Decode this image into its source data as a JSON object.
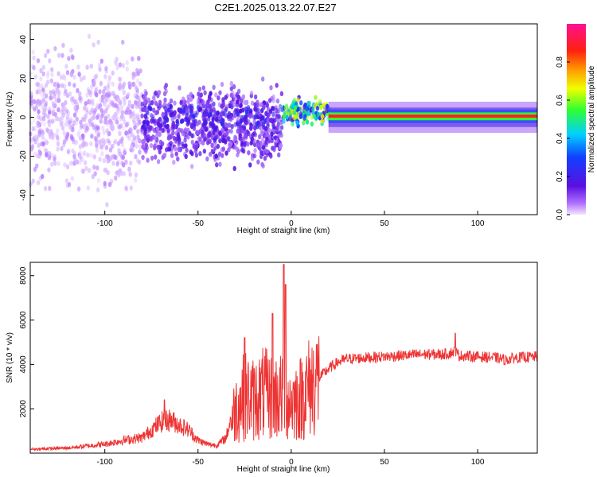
{
  "title": "C2E1.2025.013.22.07.E27",
  "colors": {
    "snr_line": "#ee3333",
    "spectrogram_dots": "#6a1fe0",
    "spectrogram_line": "#ff2a2a"
  },
  "chart_data": [
    {
      "type": "heatmap",
      "xlabel": "Height of straight line (km)",
      "ylabel": "Frequency (Hz)",
      "colorbar_label": "Normalized spectral amplitude",
      "colorbar_ticks": [
        "0.0",
        "0.2",
        "0.4",
        "0.6",
        "0.8"
      ],
      "colorbar_range": [
        0,
        1
      ],
      "colormap": "rainbow (purple-blue-cyan-green-yellow-red-magenta)",
      "x_ticks": [
        "-100",
        "-50",
        "0",
        "50",
        "100"
      ],
      "y_ticks": [
        "-40",
        "-20",
        "0",
        "20",
        "40"
      ],
      "xlim": [
        -140,
        132
      ],
      "ylim": [
        -50,
        48
      ],
      "grid": false,
      "description_regions": [
        {
          "x_range": [
            -140,
            -80
          ],
          "freq_spread": [
            -50,
            48
          ],
          "amplitude": 0.05
        },
        {
          "x_range": [
            -80,
            -5
          ],
          "freq_spread": [
            -30,
            22
          ],
          "amplitude": 0.15
        },
        {
          "x_range": [
            -5,
            20
          ],
          "freq_spread": [
            -6,
            12
          ],
          "amplitude": 0.6
        },
        {
          "x_range": [
            20,
            132
          ],
          "freq_spread": [
            -2,
            3
          ],
          "amplitude": 0.95
        }
      ]
    },
    {
      "type": "line",
      "xlabel": "Height of straight line (km)",
      "ylabel": "SNR (10 * v/v)",
      "x_ticks": [
        "-100",
        "-50",
        "0",
        "50",
        "100"
      ],
      "y_ticks": [
        "2000",
        "4000",
        "6000",
        "8000"
      ],
      "xlim": [
        -140,
        132
      ],
      "ylim": [
        0,
        8600
      ],
      "grid": false,
      "series": [
        {
          "x": [
            -140,
            -120,
            -100,
            -90,
            -80,
            -75,
            -70,
            -65,
            -60,
            -55,
            -50,
            -45,
            -40,
            -35,
            -30,
            -25,
            -20,
            -15,
            -10,
            -5,
            0,
            5,
            10,
            15,
            20,
            25,
            30,
            40,
            50,
            60,
            70,
            80,
            85,
            88,
            90,
            100,
            110,
            115,
            120,
            132
          ],
          "values": [
            150,
            200,
            350,
            500,
            600,
            900,
            1200,
            1300,
            1100,
            900,
            500,
            350,
            300,
            600,
            2000,
            2600,
            2400,
            2700,
            2500,
            2600,
            2300,
            2500,
            3000,
            3400,
            3800,
            4100,
            4250,
            4300,
            4350,
            4400,
            4450,
            4450,
            4500,
            4600,
            4400,
            4350,
            4300,
            4200,
            4300,
            4350
          ]
        }
      ],
      "spikes": [
        {
          "x": -4,
          "value": 8500
        },
        {
          "x": -3,
          "value": 7600
        },
        {
          "x": -10,
          "value": 6300
        },
        {
          "x": -25,
          "value": 5200
        },
        {
          "x": 88,
          "value": 5400
        },
        {
          "x": -68,
          "value": 2400
        }
      ]
    }
  ]
}
